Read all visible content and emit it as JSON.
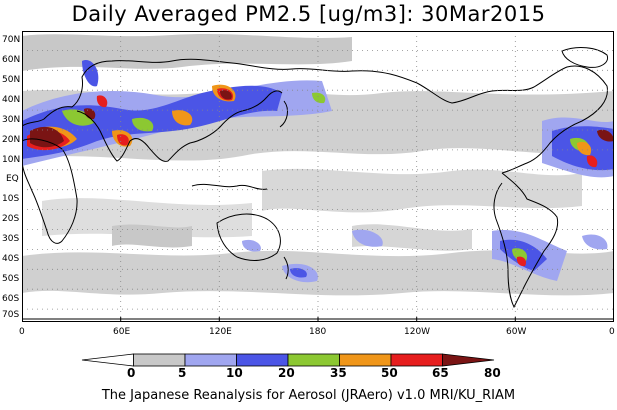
{
  "title": "Daily Averaged PM2.5 [ug/m3]: 30Mar2015",
  "footer": "The Japanese Reanalysis for Aerosol (JRAero) v1.0 MRI/KU_RIAM",
  "lat_labels": [
    "70N",
    "60N",
    "50N",
    "40N",
    "30N",
    "20N",
    "10N",
    "EQ",
    "10S",
    "20S",
    "30S",
    "40S",
    "50S",
    "60S",
    "70S"
  ],
  "lon_labels": [
    "0",
    "60E",
    "120E",
    "180",
    "120W",
    "60W",
    "0"
  ],
  "colorbar": {
    "levels": [
      "0",
      "5",
      "10",
      "20",
      "35",
      "50",
      "65",
      "80"
    ],
    "colors": [
      "#ffffff",
      "#c8c8c8",
      "#a0a6f0",
      "#4b55e6",
      "#8cc832",
      "#f09619",
      "#e61e1e",
      "#7a1414"
    ]
  }
}
